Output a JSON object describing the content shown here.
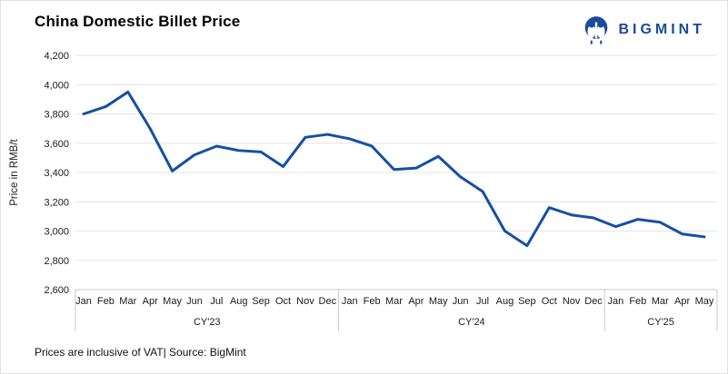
{
  "header": {
    "title": "China Domestic Billet Price",
    "logo_text": "BIGMINT"
  },
  "footer": {
    "note": "Prices are inclusive of VAT| Source: BigMint"
  },
  "colors": {
    "line": "#1450a5",
    "brand": "#1c4a9c",
    "grid": "#e4e4e4",
    "axis_box": "#c9c9c9",
    "axis_text": "#1a1a1a"
  },
  "chart_data": {
    "type": "line",
    "title": "China Domestic Billet Price",
    "xlabel": "",
    "ylabel": "Price in RMB/t",
    "ylim": [
      2600,
      4200
    ],
    "ytick_step": 200,
    "grid": "horizontal",
    "legend_position": "none",
    "year_groups": [
      {
        "label": "CY'23",
        "months": [
          "Jan",
          "Feb",
          "Mar",
          "Apr",
          "May",
          "Jun",
          "Jul",
          "Aug",
          "Sep",
          "Oct",
          "Nov",
          "Dec"
        ]
      },
      {
        "label": "CY'24",
        "months": [
          "Jan",
          "Feb",
          "Mar",
          "Apr",
          "May",
          "Jun",
          "Jul",
          "Aug",
          "Sep",
          "Oct",
          "Nov",
          "Dec"
        ]
      },
      {
        "label": "CY'25",
        "months": [
          "Jan",
          "Feb",
          "Mar",
          "Apr",
          "May"
        ]
      }
    ],
    "series": [
      {
        "name": "China Domestic Billet Price",
        "values": [
          3800,
          3850,
          3950,
          3700,
          3410,
          3520,
          3580,
          3550,
          3540,
          3440,
          3640,
          3660,
          3630,
          3580,
          3420,
          3430,
          3510,
          3370,
          3270,
          3000,
          2900,
          3160,
          3110,
          3090,
          3030,
          3080,
          3060,
          2980,
          2960
        ]
      }
    ]
  }
}
